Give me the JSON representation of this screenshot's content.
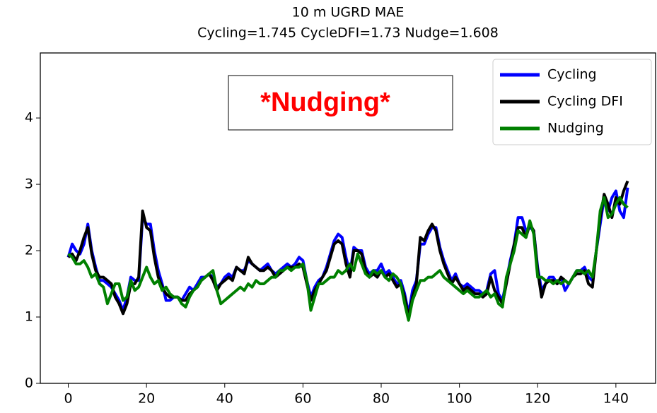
{
  "chart_data": {
    "type": "line",
    "title": "10 m UGRD MAE",
    "subtitle": "Cycling=1.745 CycleDFI=1.73 Nudge=1.608",
    "annotation": "*Nudging*",
    "legend": "upper right",
    "xlim": [
      -7.15,
      150.15
    ],
    "xticks": [
      0,
      20,
      40,
      60,
      80,
      100,
      120,
      140
    ],
    "ylim": [
      0,
      4.98
    ],
    "yticks": [
      0,
      1,
      2,
      3,
      4
    ],
    "series": [
      {
        "name": "Cycling",
        "color": "#0000ff",
        "values": [
          1.9,
          2.1,
          2.0,
          1.95,
          2.1,
          2.4,
          2.0,
          1.75,
          1.55,
          1.55,
          1.5,
          1.45,
          1.35,
          1.25,
          1.1,
          1.3,
          1.6,
          1.55,
          1.55,
          2.5,
          2.4,
          2.4,
          2.0,
          1.7,
          1.5,
          1.25,
          1.25,
          1.3,
          1.3,
          1.25,
          1.35,
          1.45,
          1.4,
          1.5,
          1.6,
          1.6,
          1.65,
          1.6,
          1.45,
          1.5,
          1.6,
          1.65,
          1.6,
          1.75,
          1.7,
          1.7,
          1.85,
          1.8,
          1.75,
          1.7,
          1.75,
          1.8,
          1.7,
          1.65,
          1.7,
          1.75,
          1.8,
          1.75,
          1.8,
          1.9,
          1.85,
          1.55,
          1.3,
          1.45,
          1.55,
          1.6,
          1.75,
          1.95,
          2.15,
          2.25,
          2.2,
          1.9,
          1.65,
          2.05,
          2.0,
          2.0,
          1.75,
          1.65,
          1.7,
          1.7,
          1.8,
          1.65,
          1.7,
          1.6,
          1.5,
          1.55,
          1.35,
          1.05,
          1.4,
          1.55,
          2.1,
          2.1,
          2.25,
          2.35,
          2.35,
          2.05,
          1.85,
          1.7,
          1.55,
          1.65,
          1.5,
          1.45,
          1.5,
          1.45,
          1.4,
          1.4,
          1.35,
          1.4,
          1.65,
          1.7,
          1.35,
          1.25,
          1.55,
          1.85,
          2.1,
          2.5,
          2.5,
          2.3,
          2.35,
          2.3,
          1.75,
          1.4,
          1.5,
          1.6,
          1.6,
          1.5,
          1.6,
          1.4,
          1.5,
          1.6,
          1.7,
          1.7,
          1.75,
          1.6,
          1.55,
          2.0,
          2.4,
          2.8,
          2.6,
          2.8,
          2.9,
          2.6,
          2.5,
          2.95
        ]
      },
      {
        "name": "Cycling DFI",
        "color": "#000000",
        "values": [
          1.9,
          1.95,
          1.85,
          2.0,
          2.2,
          2.35,
          1.95,
          1.7,
          1.6,
          1.6,
          1.55,
          1.5,
          1.3,
          1.2,
          1.05,
          1.2,
          1.5,
          1.5,
          1.6,
          2.6,
          2.35,
          2.3,
          1.9,
          1.6,
          1.45,
          1.35,
          1.3,
          1.3,
          1.3,
          1.25,
          1.25,
          1.35,
          1.4,
          1.45,
          1.55,
          1.6,
          1.65,
          1.55,
          1.4,
          1.5,
          1.55,
          1.6,
          1.55,
          1.75,
          1.7,
          1.65,
          1.9,
          1.8,
          1.75,
          1.7,
          1.7,
          1.75,
          1.7,
          1.6,
          1.65,
          1.7,
          1.75,
          1.75,
          1.75,
          1.8,
          1.75,
          1.5,
          1.25,
          1.4,
          1.5,
          1.6,
          1.7,
          1.9,
          2.1,
          2.15,
          2.1,
          1.8,
          1.6,
          2.0,
          2.0,
          1.95,
          1.7,
          1.6,
          1.65,
          1.6,
          1.7,
          1.6,
          1.65,
          1.55,
          1.45,
          1.5,
          1.3,
          1.0,
          1.3,
          1.5,
          2.2,
          2.15,
          2.3,
          2.4,
          2.3,
          2.0,
          1.8,
          1.65,
          1.5,
          1.6,
          1.5,
          1.4,
          1.45,
          1.4,
          1.35,
          1.35,
          1.3,
          1.35,
          1.6,
          1.4,
          1.3,
          1.2,
          1.5,
          1.8,
          2.1,
          2.35,
          2.35,
          2.2,
          2.4,
          2.3,
          1.7,
          1.3,
          1.5,
          1.55,
          1.55,
          1.5,
          1.6,
          1.55,
          1.5,
          1.6,
          1.65,
          1.65,
          1.7,
          1.5,
          1.45,
          2.0,
          2.5,
          2.85,
          2.7,
          2.5,
          2.8,
          2.7,
          2.9,
          3.05
        ]
      },
      {
        "name": "Nudging",
        "color": "#008000",
        "values": [
          1.95,
          1.9,
          1.8,
          1.8,
          1.85,
          1.75,
          1.6,
          1.65,
          1.5,
          1.45,
          1.2,
          1.35,
          1.5,
          1.5,
          1.25,
          1.3,
          1.55,
          1.4,
          1.45,
          1.6,
          1.75,
          1.6,
          1.5,
          1.55,
          1.4,
          1.45,
          1.35,
          1.3,
          1.3,
          1.2,
          1.15,
          1.3,
          1.4,
          1.45,
          1.55,
          1.6,
          1.65,
          1.7,
          1.4,
          1.2,
          1.25,
          1.3,
          1.35,
          1.4,
          1.45,
          1.4,
          1.5,
          1.45,
          1.55,
          1.5,
          1.5,
          1.55,
          1.6,
          1.6,
          1.7,
          1.7,
          1.75,
          1.7,
          1.75,
          1.75,
          1.8,
          1.55,
          1.1,
          1.3,
          1.5,
          1.5,
          1.55,
          1.6,
          1.6,
          1.7,
          1.65,
          1.7,
          1.8,
          1.7,
          1.95,
          1.8,
          1.65,
          1.6,
          1.7,
          1.65,
          1.7,
          1.6,
          1.55,
          1.65,
          1.6,
          1.5,
          1.2,
          0.95,
          1.25,
          1.4,
          1.55,
          1.55,
          1.6,
          1.6,
          1.65,
          1.7,
          1.6,
          1.55,
          1.5,
          1.45,
          1.4,
          1.35,
          1.4,
          1.35,
          1.3,
          1.3,
          1.35,
          1.4,
          1.3,
          1.35,
          1.2,
          1.15,
          1.6,
          1.8,
          2.0,
          2.3,
          2.25,
          2.2,
          2.45,
          2.25,
          1.6,
          1.6,
          1.55,
          1.55,
          1.5,
          1.55,
          1.5,
          1.55,
          1.5,
          1.6,
          1.7,
          1.7,
          1.65,
          1.7,
          1.6,
          2.0,
          2.6,
          2.8,
          2.5,
          2.55,
          2.7,
          2.8,
          2.7,
          2.65
        ]
      }
    ]
  }
}
